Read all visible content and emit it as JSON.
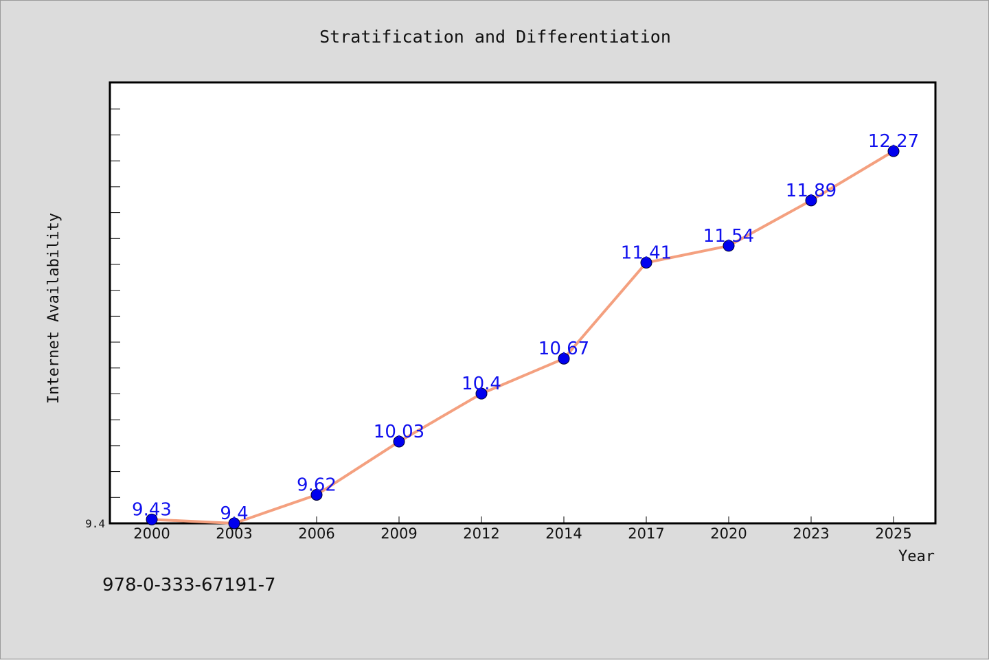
{
  "chart_data": {
    "type": "line",
    "title": "Stratification and Differentiation",
    "xlabel": "Year",
    "ylabel": "Internet Availability",
    "categories": [
      "2000",
      "2003",
      "2006",
      "2009",
      "2012",
      "2014",
      "2017",
      "2020",
      "2023",
      "2025"
    ],
    "series": [
      {
        "values": [
          9.43,
          9.4,
          9.62,
          10.03,
          10.4,
          10.67,
          11.41,
          11.54,
          11.89,
          12.27
        ],
        "labels": [
          "9.43",
          "9.4",
          "9.62",
          "10.03",
          "10.4",
          "10.67",
          "11.41",
          "11.54",
          "11.89",
          "12.27"
        ]
      }
    ],
    "ylim": [
      9.4,
      12.8
    ],
    "ytick_labels": [
      "9.4"
    ],
    "grid": false,
    "colors": {
      "line": "#f4a07f",
      "marker": "#0000ee",
      "labels": "#1010ee",
      "background": "#dcdcdc",
      "plot_area": "#ffffff"
    }
  },
  "footer": {
    "isbn": "978-0-333-67191-7"
  }
}
